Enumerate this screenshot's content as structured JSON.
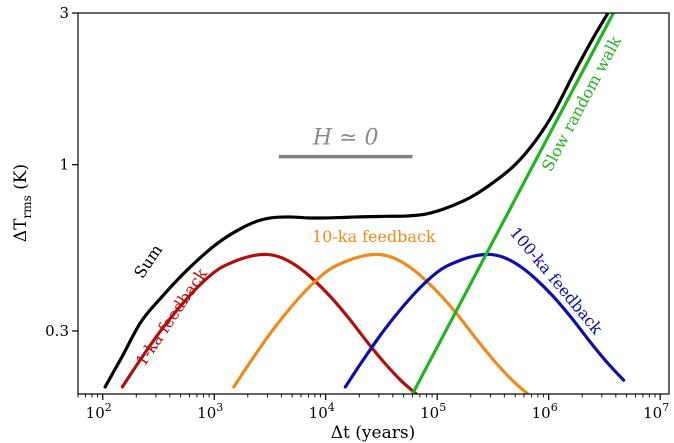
{
  "chart_data": {
    "type": "line",
    "title": "",
    "xlabel": "Δt (years)",
    "ylabel": "ΔT_rms (K)",
    "x_scale": "log",
    "y_scale": "log",
    "xlim": [
      60,
      12000000
    ],
    "ylim": [
      0.19,
      3.0
    ],
    "grid": false,
    "x_ticks": [
      {
        "value": 100,
        "label": "10",
        "exp": "2"
      },
      {
        "value": 1000,
        "label": "10",
        "exp": "3"
      },
      {
        "value": 10000,
        "label": "10",
        "exp": "4"
      },
      {
        "value": 100000,
        "label": "10",
        "exp": "5"
      },
      {
        "value": 1000000,
        "label": "10",
        "exp": "6"
      },
      {
        "value": 10000000,
        "label": "10",
        "exp": "7"
      }
    ],
    "y_ticks": [
      {
        "value": 0.3,
        "label": "0.3"
      },
      {
        "value": 1,
        "label": "1"
      },
      {
        "value": 3,
        "label": "3"
      }
    ],
    "series": [
      {
        "name": "Sum",
        "color": "#000000",
        "x": [
          105,
          150,
          220,
          330,
          500,
          750,
          1100,
          1600,
          2300,
          3200,
          4600,
          7000,
          10000,
          15000,
          22000,
          35000,
          55000,
          80000,
          120000,
          200000,
          320000,
          500000,
          750000,
          1100000,
          1700000,
          2500000,
          3500000
        ],
        "y": [
          0.2,
          0.25,
          0.32,
          0.38,
          0.445,
          0.51,
          0.57,
          0.62,
          0.66,
          0.68,
          0.685,
          0.68,
          0.68,
          0.683,
          0.686,
          0.688,
          0.69,
          0.7,
          0.73,
          0.79,
          0.88,
          1.0,
          1.18,
          1.45,
          1.95,
          2.5,
          3.05
        ]
      },
      {
        "name": "1-ka feedback",
        "color": "#b30d0d",
        "x": [
          150,
          220,
          330,
          500,
          750,
          1100,
          1600,
          2200,
          3000,
          4000,
          5500,
          7500,
          11000,
          16000,
          23000,
          33000,
          47000,
          65000
        ],
        "y": [
          0.2,
          0.245,
          0.3,
          0.36,
          0.42,
          0.47,
          0.5,
          0.517,
          0.522,
          0.51,
          0.48,
          0.44,
          0.385,
          0.33,
          0.28,
          0.24,
          0.21,
          0.19
        ]
      },
      {
        "name": "10-ka feedback",
        "color": "#ef8a1c",
        "x": [
          1500,
          2200,
          3300,
          5000,
          7500,
          11000,
          16000,
          22000,
          30000,
          40000,
          55000,
          75000,
          110000,
          160000,
          230000,
          330000,
          470000,
          650000
        ],
        "y": [
          0.2,
          0.245,
          0.3,
          0.36,
          0.42,
          0.47,
          0.5,
          0.517,
          0.522,
          0.51,
          0.48,
          0.44,
          0.385,
          0.33,
          0.28,
          0.24,
          0.21,
          0.19
        ]
      },
      {
        "name": "100-ka feedback",
        "color": "#0d0da8",
        "x": [
          15000,
          22000,
          33000,
          50000,
          75000,
          110000,
          160000,
          220000,
          300000,
          400000,
          550000,
          750000,
          1100000,
          1600000,
          2300000,
          3300000,
          4700000
        ],
        "y": [
          0.2,
          0.245,
          0.3,
          0.36,
          0.42,
          0.47,
          0.5,
          0.517,
          0.522,
          0.51,
          0.48,
          0.44,
          0.385,
          0.33,
          0.28,
          0.24,
          0.21
        ]
      },
      {
        "name": "Slow random walk",
        "color": "#22b422",
        "x": [
          60000,
          4000000
        ],
        "y": [
          0.19,
          3.1
        ]
      }
    ],
    "annotations": [
      {
        "text": "Sum",
        "color": "#000000",
        "x": 260,
        "y": 0.495,
        "angle": -56
      },
      {
        "text": "1-ka feedback",
        "color": "#b30d0d",
        "x": 420,
        "y": 0.33,
        "angle": -56
      },
      {
        "text": "10-ka feedback",
        "color": "#ef8a1c",
        "x": 27000,
        "y": 0.59,
        "angle": 0
      },
      {
        "text": "100-ka feedback",
        "color": "#0d0da8",
        "x": 1150000,
        "y": 0.43,
        "angle": 50
      },
      {
        "text": "Slow random walk",
        "color": "#22b422",
        "x": 2000000,
        "y": 1.55,
        "angle": -62
      }
    ],
    "reference_line": {
      "label": "H ≃ 0",
      "color": "#808080",
      "x_start": 3800,
      "x_end": 60000,
      "y": 1.06
    }
  }
}
